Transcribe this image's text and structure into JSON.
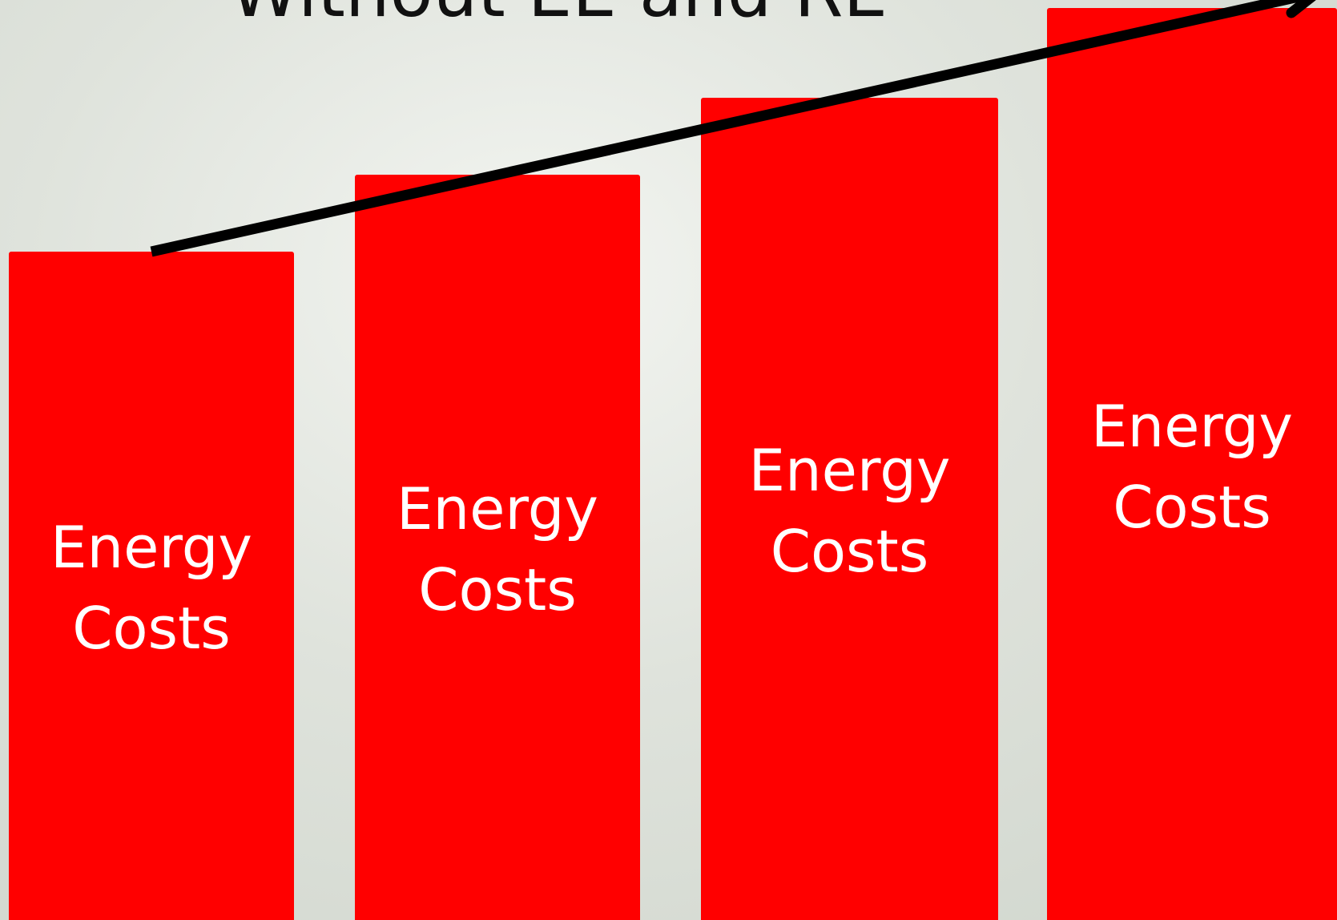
{
  "title": "Without EE and RE",
  "bars": [
    {
      "label": "Energy Costs"
    },
    {
      "label": "Energy Costs"
    },
    {
      "label": "Energy Costs"
    },
    {
      "label": "Energy Costs"
    }
  ]
}
